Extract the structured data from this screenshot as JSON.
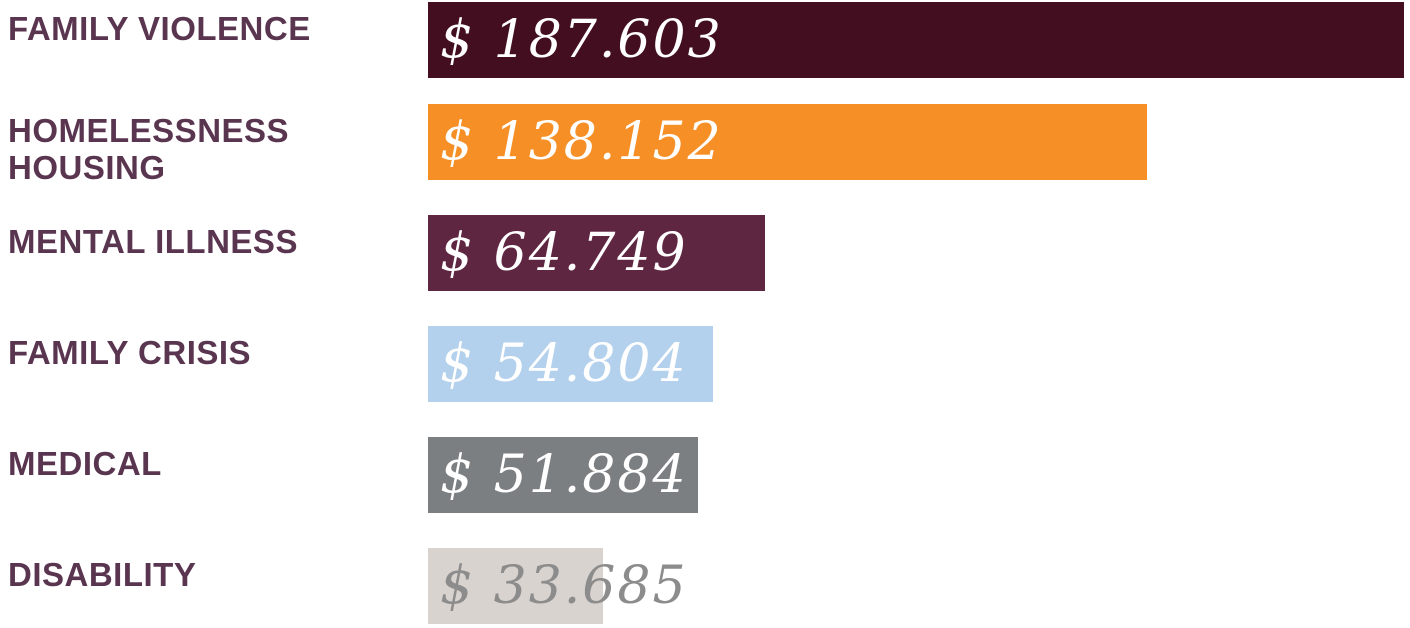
{
  "chart_data": {
    "type": "bar",
    "orientation": "horizontal",
    "title": "",
    "xlabel": "",
    "ylabel": "",
    "xlim": [
      0,
      187603
    ],
    "grid": false,
    "categories": [
      "FAMILY VIOLENCE",
      "HOMELESSNESS\nHOUSING",
      "MENTAL ILLNESS",
      "FAMILY CRISIS",
      "MEDICAL",
      "DISABILITY"
    ],
    "values": [
      187603,
      138152,
      64749,
      54804,
      51884,
      33685
    ],
    "value_labels": [
      "$ 187.603",
      "$ 138.152",
      "$ 64.749",
      "$ 54.804",
      "$ 51.884",
      "$ 33.685"
    ],
    "bar_colors": [
      "#430f20",
      "#f78f27",
      "#5f2642",
      "#b3d0ec",
      "#7c7f82",
      "#d9d3d0"
    ],
    "label_colors": [
      "#ffffff",
      "#ffffff",
      "#ffffff",
      "#ffffff",
      "#ffffff",
      "#8c8c8c"
    ],
    "category_label_color": "#5a3550"
  }
}
